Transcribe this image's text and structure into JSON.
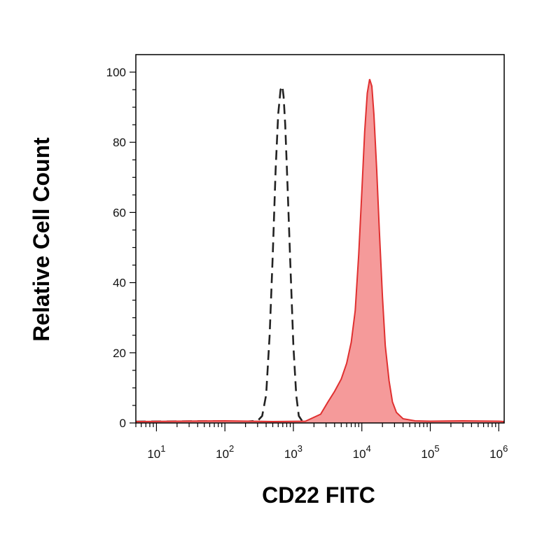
{
  "chart_data": {
    "type": "area",
    "title": "",
    "xlabel": "CD22 FITC",
    "ylabel": "Relative Cell Count",
    "x_scale": "log",
    "xlim": [
      5,
      1200000
    ],
    "ylim": [
      0,
      105
    ],
    "x_ticks": [
      {
        "value": 10,
        "base": "10",
        "exp": "1"
      },
      {
        "value": 100,
        "base": "10",
        "exp": "2"
      },
      {
        "value": 1000,
        "base": "10",
        "exp": "3"
      },
      {
        "value": 10000,
        "base": "10",
        "exp": "4"
      },
      {
        "value": 100000,
        "base": "10",
        "exp": "5"
      },
      {
        "value": 1000000,
        "base": "10",
        "exp": "6"
      }
    ],
    "y_ticks": [
      {
        "value": 0,
        "label": "0"
      },
      {
        "value": 20,
        "label": "20"
      },
      {
        "value": 40,
        "label": "40"
      },
      {
        "value": 60,
        "label": "60"
      },
      {
        "value": 80,
        "label": "80"
      },
      {
        "value": 100,
        "label": "100"
      }
    ],
    "grid": false,
    "legend": "none",
    "series": [
      {
        "style": "dashed-outline",
        "color": "#222222",
        "points": [
          [
            5,
            0.4
          ],
          [
            50,
            0.5
          ],
          [
            200,
            0.4
          ],
          [
            300,
            0.6
          ],
          [
            350,
            2
          ],
          [
            400,
            8
          ],
          [
            450,
            25
          ],
          [
            500,
            48
          ],
          [
            550,
            72
          ],
          [
            600,
            88
          ],
          [
            650,
            95
          ],
          [
            690,
            96
          ],
          [
            720,
            93
          ],
          [
            760,
            85
          ],
          [
            820,
            68
          ],
          [
            900,
            46
          ],
          [
            1000,
            22
          ],
          [
            1100,
            8
          ],
          [
            1200,
            2
          ],
          [
            1350,
            0.5
          ],
          [
            1500,
            0.2
          ]
        ]
      },
      {
        "style": "filled",
        "color": "#e03030",
        "fill": "#f59a9a",
        "points": [
          [
            5,
            0.4
          ],
          [
            100,
            0.6
          ],
          [
            500,
            0.4
          ],
          [
            1500,
            0.5
          ],
          [
            2500,
            2.5
          ],
          [
            3200,
            6
          ],
          [
            4000,
            9
          ],
          [
            5000,
            12.5
          ],
          [
            6000,
            17
          ],
          [
            7000,
            23
          ],
          [
            8000,
            32
          ],
          [
            9000,
            48
          ],
          [
            10000,
            66
          ],
          [
            11000,
            83
          ],
          [
            12000,
            94
          ],
          [
            13000,
            98
          ],
          [
            14000,
            96
          ],
          [
            15000,
            88
          ],
          [
            16500,
            72
          ],
          [
            18000,
            55
          ],
          [
            20000,
            36
          ],
          [
            22000,
            22
          ],
          [
            25000,
            12
          ],
          [
            28000,
            6
          ],
          [
            32000,
            3
          ],
          [
            40000,
            1.2
          ],
          [
            60000,
            0.6
          ],
          [
            100000,
            0.5
          ],
          [
            300000,
            0.6
          ],
          [
            1000000,
            0.5
          ],
          [
            1200000,
            0.4
          ]
        ]
      }
    ]
  }
}
